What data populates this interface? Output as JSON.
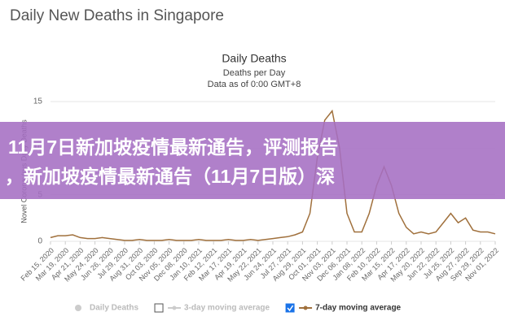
{
  "page_title": "Daily New Deaths in Singapore",
  "chart_data": {
    "type": "line",
    "title": "Daily Deaths",
    "subtitle": "Deaths per Day",
    "note": "Data as of 0:00 GMT+8",
    "y_label": "Novel Coronavirus Daily Deaths",
    "categories": [
      "Feb 15, 2020",
      null,
      "Mar 19, 2020",
      null,
      "Apr 21, 2020",
      null,
      "May 24, 2020",
      null,
      "Jun 26, 2020",
      null,
      "Jul 29, 2020",
      null,
      "Aug 31, 2020",
      null,
      "Oct 03, 2020",
      null,
      "Nov 05, 2020",
      null,
      "Dec 08, 2020",
      null,
      "Jan 10, 2021",
      null,
      "Feb 12, 2021",
      null,
      "Mar 17, 2021",
      null,
      "Apr 19, 2021",
      null,
      "May 22, 2021",
      null,
      "Jun 24, 2021",
      null,
      "Jul 27, 2021",
      null,
      "Aug 29, 2021",
      null,
      "Oct 01, 2021",
      null,
      "Nov 03, 2021",
      null,
      "Dec 06, 2021",
      null,
      "Jan 08, 2022",
      null,
      "Feb 10, 2022",
      null,
      "Mar 15, 2022",
      null,
      "Apr 17, 2022",
      null,
      "May 20, 2022",
      null,
      "Jun 22, 2022",
      null,
      "Jul 25, 2022",
      null,
      "Aug 27, 2022",
      null,
      "Sep 29, 2022",
      null,
      "Nov 01, 2022"
    ],
    "series": [
      {
        "name": "7-day moving average",
        "color": "#a0703c",
        "values": [
          0.4,
          0.6,
          0.6,
          0.7,
          0.4,
          0.3,
          0.3,
          0.4,
          0.3,
          0.2,
          0.1,
          0.1,
          0.2,
          0.1,
          0.1,
          0.1,
          0.2,
          0.1,
          0.1,
          0.1,
          0.2,
          0.1,
          0.1,
          0.1,
          0.2,
          0.1,
          0.1,
          0.2,
          0.1,
          0.2,
          0.3,
          0.4,
          0.5,
          0.7,
          1,
          3,
          9,
          13,
          14,
          10,
          3,
          1,
          1,
          3,
          6,
          8,
          6,
          3,
          1.5,
          0.8,
          1,
          0.8,
          1,
          2,
          3,
          2,
          2.5,
          1.2,
          1,
          1,
          0.8
        ]
      }
    ],
    "legend": [
      {
        "name": "Daily Deaths",
        "color": "#cccccc",
        "checked": false
      },
      {
        "name": "3-day moving average",
        "color": "#cccccc",
        "checked": false
      },
      {
        "name": "7-day moving average",
        "color": "#a0703c",
        "checked": true
      }
    ],
    "ylim": [
      0,
      15
    ],
    "yticks": [
      0,
      5,
      10,
      15
    ],
    "grid": true
  },
  "banner": {
    "lines": [
      "11月7日新加坡疫情最新通告，评测报告",
      "，新加坡疫情最新通告（11月7日版）深"
    ]
  }
}
